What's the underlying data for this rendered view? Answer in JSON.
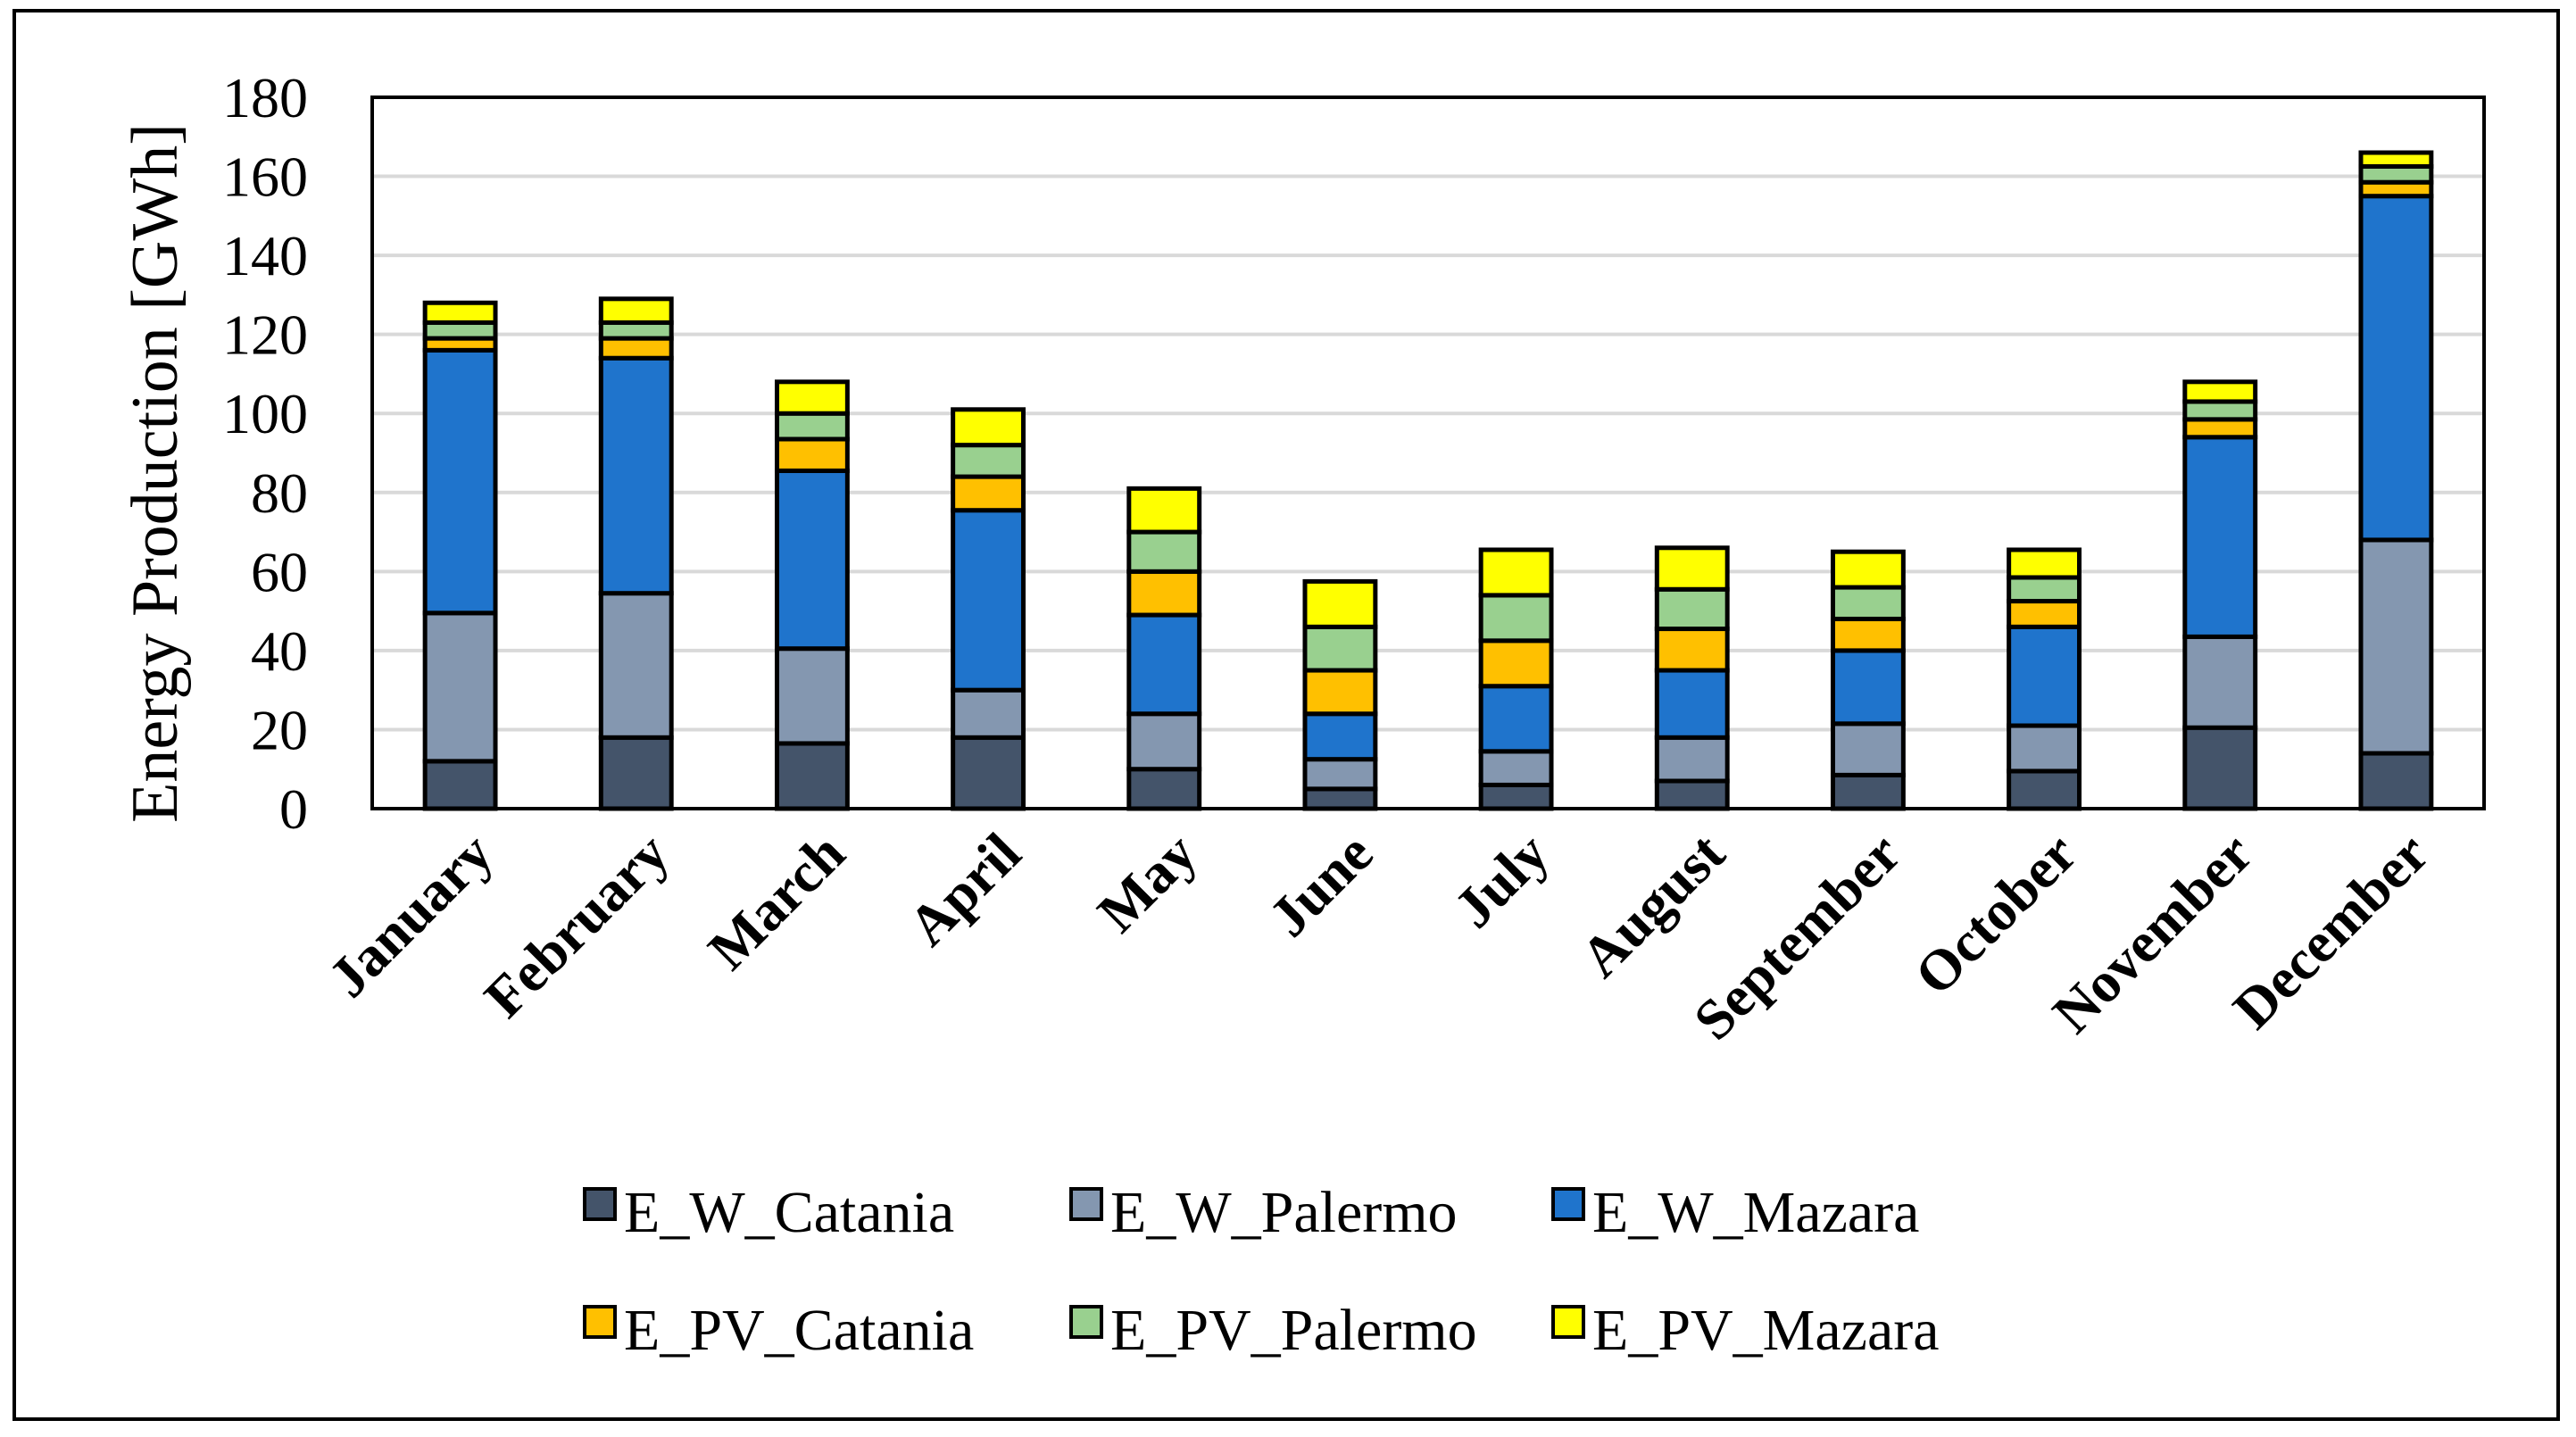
{
  "chart_data": {
    "type": "bar",
    "stacked": true,
    "title": "",
    "xlabel": "",
    "ylabel": "Energy Production [GWh]",
    "ylim": [
      0,
      180
    ],
    "yticks": [
      0,
      20,
      40,
      60,
      80,
      100,
      120,
      140,
      160,
      180
    ],
    "grid": true,
    "legend_position": "bottom",
    "categories": [
      "January",
      "February",
      "March",
      "April",
      "May",
      "June",
      "July",
      "August",
      "September",
      "October",
      "November",
      "December"
    ],
    "series": [
      {
        "name": "E_W_Catania",
        "color": "#44546a",
        "values": [
          12,
          18,
          16.5,
          18,
          10,
          5,
          6,
          7,
          8.5,
          9.5,
          20.5,
          14
        ]
      },
      {
        "name": "E_W_Palermo",
        "color": "#8497b0",
        "values": [
          37.5,
          36.5,
          24,
          12,
          14,
          7.5,
          8.5,
          11,
          13,
          11.5,
          23,
          54
        ]
      },
      {
        "name": "E_W_Mazara",
        "color": "#1f74cc",
        "values": [
          66.5,
          59.5,
          45,
          45.5,
          25,
          11.5,
          16.5,
          17,
          18.5,
          25,
          50.5,
          87
        ]
      },
      {
        "name": "E_PV_Catania",
        "color": "#ffc000",
        "values": [
          3,
          5,
          8,
          8.5,
          11,
          11,
          11.5,
          10.5,
          8,
          6.5,
          4.5,
          3.5
        ]
      },
      {
        "name": "E_PV_Palermo",
        "color": "#99d08f",
        "values": [
          4,
          4,
          6.5,
          8,
          10,
          11,
          11.5,
          10,
          8,
          6,
          4.5,
          4
        ]
      },
      {
        "name": "E_PV_Mazara",
        "color": "#ffff00",
        "values": [
          5,
          6,
          8,
          9,
          11,
          11.5,
          11.5,
          10.5,
          9,
          7,
          5,
          3.5
        ]
      }
    ]
  }
}
